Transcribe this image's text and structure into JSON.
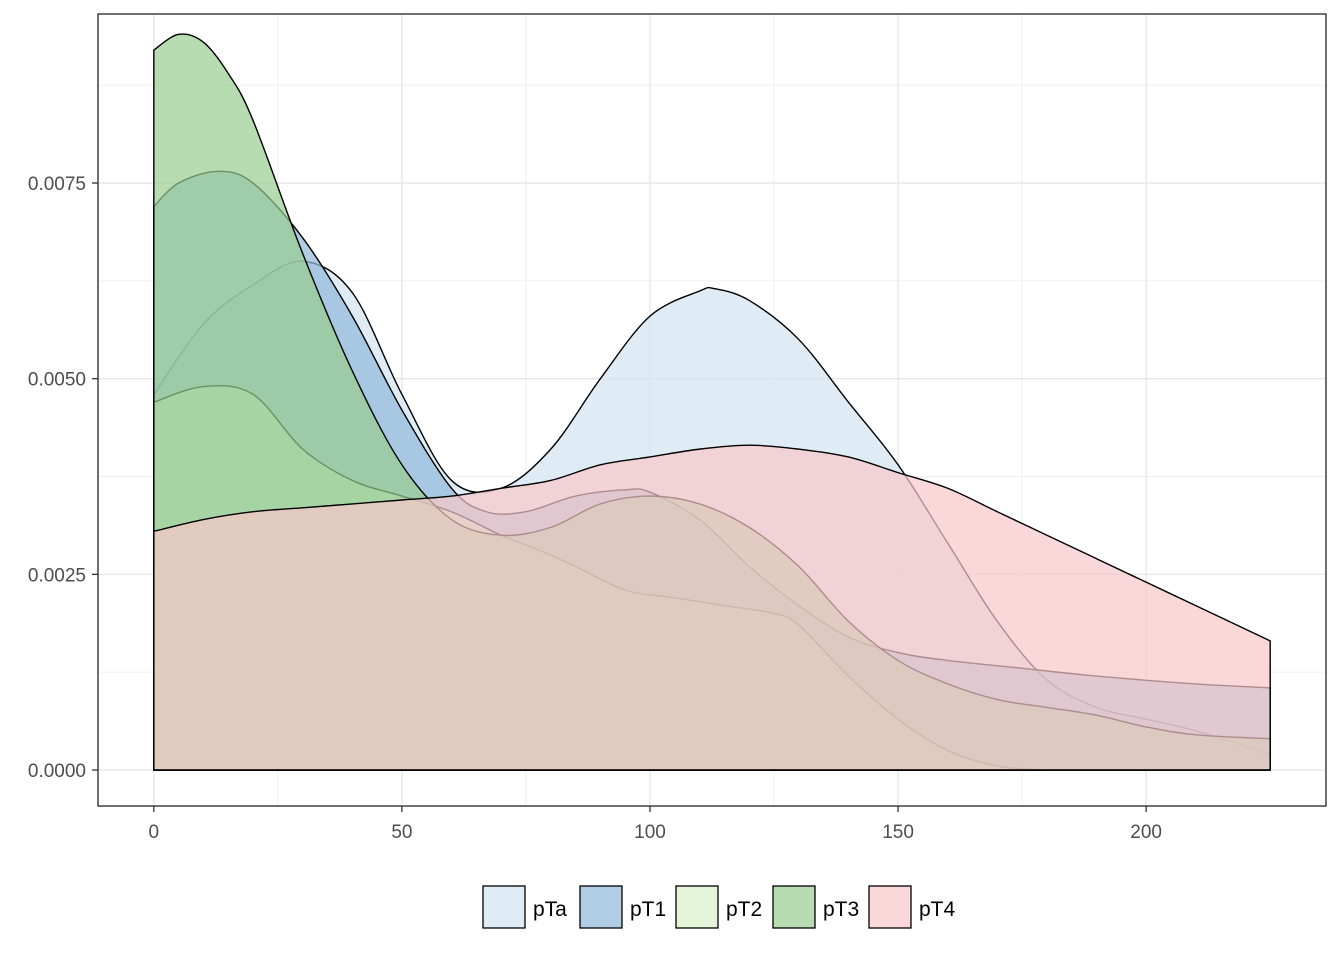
{
  "chart_data": {
    "type": "area",
    "title": "",
    "xlabel": "",
    "ylabel": "",
    "xlim": [
      -11.25,
      236.25
    ],
    "ylim": [
      -0.00046,
      0.00966
    ],
    "x_ticks": [
      0,
      50,
      100,
      150,
      200
    ],
    "x_tick_labels": [
      "0",
      "50",
      "100",
      "150",
      "200"
    ],
    "y_ticks": [
      0,
      0.0025,
      0.005,
      0.0075
    ],
    "y_tick_labels": [
      "0.0000",
      "0.0025",
      "0.0050",
      "0.0075"
    ],
    "grid": true,
    "legend_position": "bottom",
    "series": [
      {
        "name": "pTa",
        "color": "#d3e4f1",
        "x": [
          0,
          10,
          20,
          30,
          40,
          50,
          60,
          70,
          80,
          90,
          100,
          110,
          113,
          120,
          130,
          140,
          150,
          160,
          170,
          180,
          190,
          200,
          210,
          225
        ],
        "y": [
          0.0048,
          0.0057,
          0.0062,
          0.0065,
          0.0061,
          0.0048,
          0.0037,
          0.0036,
          0.0041,
          0.005,
          0.0058,
          0.00612,
          0.00615,
          0.006,
          0.0055,
          0.0047,
          0.0039,
          0.0029,
          0.0019,
          0.00115,
          0.0008,
          0.00065,
          0.0005,
          0.0002
        ]
      },
      {
        "name": "pT1",
        "color": "#8fb8da",
        "x": [
          0,
          5,
          13,
          20,
          30,
          40,
          50,
          60,
          67,
          75,
          85,
          95,
          100,
          110,
          120,
          130,
          140,
          150,
          160,
          175,
          190,
          210,
          225
        ],
        "y": [
          0.0072,
          0.0075,
          0.00765,
          0.0075,
          0.0068,
          0.0058,
          0.0046,
          0.0036,
          0.0033,
          0.0033,
          0.0035,
          0.00358,
          0.00355,
          0.0032,
          0.0026,
          0.0021,
          0.0017,
          0.0015,
          0.0014,
          0.0013,
          0.0012,
          0.0011,
          0.00105
        ]
      },
      {
        "name": "pT2",
        "color": "#d9f0c8",
        "x": [
          0,
          10,
          20,
          30,
          40,
          50,
          60,
          70,
          78,
          85,
          95,
          105,
          115,
          125,
          130,
          140,
          150,
          160,
          170,
          180
        ],
        "y": [
          0.0047,
          0.0049,
          0.0048,
          0.0041,
          0.0037,
          0.0035,
          0.0033,
          0.003,
          0.0028,
          0.0026,
          0.0023,
          0.0022,
          0.0021,
          0.002,
          0.00185,
          0.0012,
          0.00065,
          0.00025,
          5e-05,
          0
        ]
      },
      {
        "name": "pT3",
        "color": "#98cd90",
        "x": [
          0,
          5,
          10,
          15,
          20,
          30,
          40,
          50,
          60,
          70,
          80,
          90,
          100,
          110,
          120,
          130,
          140,
          150,
          160,
          170,
          180,
          190,
          200,
          210,
          225
        ],
        "y": [
          0.0092,
          0.0094,
          0.0093,
          0.0089,
          0.0083,
          0.0066,
          0.0051,
          0.0039,
          0.0032,
          0.003,
          0.0031,
          0.0034,
          0.0035,
          0.0034,
          0.0031,
          0.0026,
          0.0019,
          0.0014,
          0.0011,
          0.0009,
          0.0008,
          0.0007,
          0.00055,
          0.00045,
          0.0004
        ]
      },
      {
        "name": "pT4",
        "color": "#f8c8c9",
        "x": [
          0,
          10,
          20,
          30,
          40,
          50,
          60,
          70,
          80,
          90,
          100,
          110,
          120,
          130,
          140,
          150,
          160,
          170,
          180,
          190,
          200,
          210,
          225
        ],
        "y": [
          0.00305,
          0.0032,
          0.0033,
          0.00335,
          0.0034,
          0.00345,
          0.0035,
          0.0036,
          0.0037,
          0.0039,
          0.004,
          0.0041,
          0.00415,
          0.0041,
          0.004,
          0.0038,
          0.0036,
          0.0033,
          0.003,
          0.0027,
          0.0024,
          0.0021,
          0.00165
        ]
      }
    ]
  }
}
